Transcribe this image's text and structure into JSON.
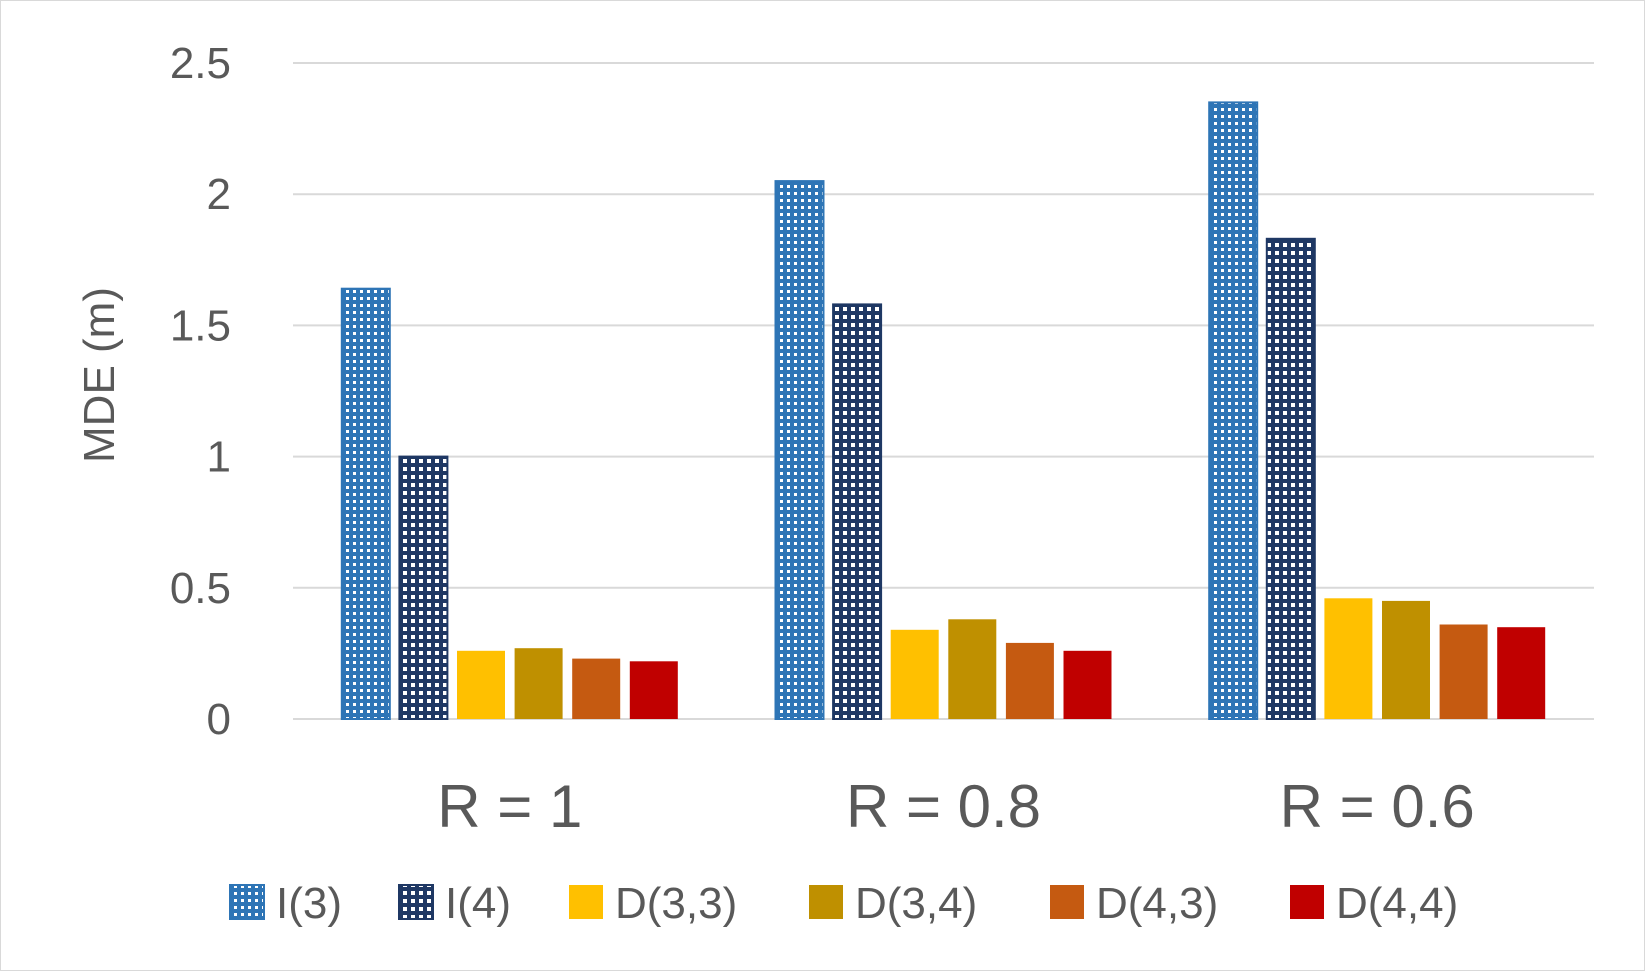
{
  "chart_data": {
    "type": "bar",
    "title": "",
    "xlabel": "",
    "ylabel": "MDE (m)",
    "ylim": [
      0,
      2.5
    ],
    "yticks": [
      "0",
      "0.5",
      "1",
      "1.5",
      "2",
      "2.5"
    ],
    "categories": [
      "R = 1",
      "R = 0.8",
      "R = 0.6"
    ],
    "series": [
      {
        "name": "I(3)",
        "values": [
          1.64,
          2.05,
          2.35
        ],
        "color": "#2e75b6",
        "pattern": "dots-light"
      },
      {
        "name": "I(4)",
        "values": [
          1.0,
          1.58,
          1.83
        ],
        "color": "#1f3864",
        "pattern": "dots-dark"
      },
      {
        "name": "D(3,3)",
        "values": [
          0.26,
          0.34,
          0.46
        ],
        "color": "#ffc000",
        "pattern": "solid"
      },
      {
        "name": "D(3,4)",
        "values": [
          0.27,
          0.38,
          0.45
        ],
        "color": "#bf9000",
        "pattern": "solid"
      },
      {
        "name": "D(4,3)",
        "values": [
          0.23,
          0.29,
          0.36
        ],
        "color": "#c55a11",
        "pattern": "solid"
      },
      {
        "name": "D(4,4)",
        "values": [
          0.22,
          0.26,
          0.35
        ],
        "color": "#c00000",
        "pattern": "solid"
      }
    ],
    "legend_position": "bottom",
    "grid": true
  }
}
